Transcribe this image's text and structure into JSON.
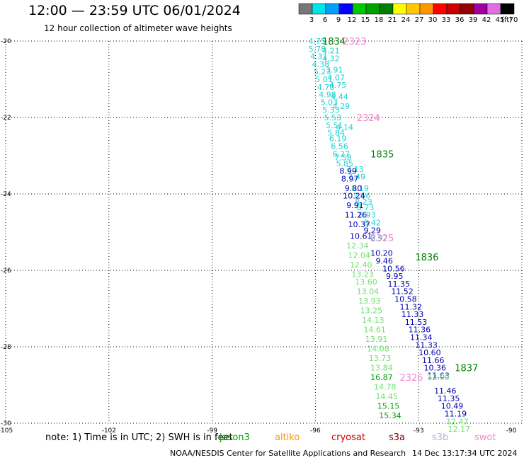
{
  "title": "12:00 — 23:59 UTC 06/01/2024",
  "subtitle": "12 hour collection of altimeter wave heights",
  "colorbar": {
    "unit_label": "(ft)",
    "ticks": [
      "3",
      "6",
      "9",
      "12",
      "15",
      "18",
      "21",
      "24",
      "27",
      "30",
      "33",
      "36",
      "39",
      "42",
      "45",
      "70"
    ],
    "colors": [
      "#777777",
      "#00e5e5",
      "#00a0ff",
      "#0000ff",
      "#00c800",
      "#00a000",
      "#008000",
      "#ffff00",
      "#ffc800",
      "#ff9600",
      "#ff0000",
      "#c80000",
      "#960000",
      "#a000a0",
      "#e070e0",
      "#000000"
    ]
  },
  "map": {
    "lat_labels": [
      "-20",
      "-22",
      "-24",
      "-26",
      "-28",
      "-30"
    ],
    "lon_labels": [
      "-105",
      "-102",
      "-99",
      "-96",
      "-93",
      "-90"
    ]
  },
  "colors": {
    "jason3": "#00a000",
    "altika": "#ff9600",
    "cryosat": "#c80000",
    "s3a": "#7a0000",
    "s3b": "#b0b0ee",
    "swot": "#ee88cc",
    "track_cyan": "#20d0d0",
    "track_blue": "#0000b0",
    "track_lightgreen": "#70e070",
    "track_green": "#00b000"
  },
  "tracks": [
    {
      "name": "cyan-track",
      "color": "#20d0d0",
      "points": [
        {
          "v": "4.75",
          "lon": -96.2,
          "lat": -20.0
        },
        {
          "v": "5.78",
          "lon": -96.2,
          "lat": -20.2
        },
        {
          "v": "4.31",
          "lon": -96.15,
          "lat": -20.4
        },
        {
          "v": "4.38",
          "lon": -96.1,
          "lat": -20.6
        },
        {
          "v": "5.23",
          "lon": -96.05,
          "lat": -20.8
        },
        {
          "v": "5.01",
          "lon": -96.0,
          "lat": -21.0
        },
        {
          "v": "4.70",
          "lon": -95.95,
          "lat": -21.2
        },
        {
          "v": "4.98",
          "lon": -95.9,
          "lat": -21.4
        },
        {
          "v": "5.03",
          "lon": -95.85,
          "lat": -21.6
        },
        {
          "v": "5.33",
          "lon": -95.8,
          "lat": -21.8
        },
        {
          "v": "5.53",
          "lon": -95.75,
          "lat": -22.0
        },
        {
          "v": "5.51",
          "lon": -95.7,
          "lat": -22.2
        },
        {
          "v": "5.84",
          "lon": -95.65,
          "lat": -22.4
        },
        {
          "v": "6.19",
          "lon": -95.6,
          "lat": -22.55
        },
        {
          "v": "6.56",
          "lon": -95.55,
          "lat": -22.75
        },
        {
          "v": "6.27",
          "lon": -95.5,
          "lat": -22.95
        },
        {
          "v": "7.58",
          "lon": -95.45,
          "lat": -23.05
        },
        {
          "v": "5.85",
          "lon": -95.4,
          "lat": -23.2
        }
      ]
    },
    {
      "name": "cyan-track-right",
      "color": "#20d0d0",
      "points": [
        {
          "v": "4.21",
          "lon": -95.8,
          "lat": -20.25
        },
        {
          "v": "4.32",
          "lon": -95.8,
          "lat": -20.45
        },
        {
          "v": "3.91",
          "lon": -95.7,
          "lat": -20.75
        },
        {
          "v": "4.07",
          "lon": -95.65,
          "lat": -20.95
        },
        {
          "v": "4.75",
          "lon": -95.6,
          "lat": -21.15
        },
        {
          "v": "4.44",
          "lon": -95.55,
          "lat": -21.45
        },
        {
          "v": "4.29",
          "lon": -95.5,
          "lat": -21.7
        },
        {
          "v": "4.14",
          "lon": -95.4,
          "lat": -22.25
        },
        {
          "v": "7.13",
          "lon": -95.1,
          "lat": -23.35
        },
        {
          "v": "7.49",
          "lon": -95.05,
          "lat": -23.55
        },
        {
          "v": "8.19",
          "lon": -94.95,
          "lat": -23.85
        },
        {
          "v": "7.56",
          "lon": -94.9,
          "lat": -24.05
        },
        {
          "v": "8.23",
          "lon": -94.85,
          "lat": -24.2
        },
        {
          "v": "8.73",
          "lon": -94.8,
          "lat": -24.35
        },
        {
          "v": "8.93",
          "lon": -94.75,
          "lat": -24.55
        },
        {
          "v": "8.42",
          "lon": -94.6,
          "lat": -24.75
        },
        {
          "v": "8.97",
          "lon": -94.4,
          "lat": -25.15
        }
      ]
    },
    {
      "name": "blue-track",
      "color": "#0000b0",
      "points": [
        {
          "v": "8.99",
          "lon": -95.3,
          "lat": -23.4
        },
        {
          "v": "8.97",
          "lon": -95.25,
          "lat": -23.6
        },
        {
          "v": "9.80",
          "lon": -95.15,
          "lat": -23.85
        },
        {
          "v": "10.24",
          "lon": -95.2,
          "lat": -24.05
        },
        {
          "v": "9.91",
          "lon": -95.1,
          "lat": -24.3
        },
        {
          "v": "11.26",
          "lon": -95.15,
          "lat": -24.55
        },
        {
          "v": "10.37",
          "lon": -95.05,
          "lat": -24.8
        },
        {
          "v": "9.29",
          "lon": -94.6,
          "lat": -24.95
        },
        {
          "v": "10.61",
          "lon": -95.0,
          "lat": -25.1
        },
        {
          "v": "10.20",
          "lon": -94.4,
          "lat": -25.55
        },
        {
          "v": "9.46",
          "lon": -94.25,
          "lat": -25.75
        },
        {
          "v": "10.56",
          "lon": -94.05,
          "lat": -25.95
        },
        {
          "v": "9.95",
          "lon": -93.95,
          "lat": -26.15
        },
        {
          "v": "11.35",
          "lon": -93.9,
          "lat": -26.35
        },
        {
          "v": "11.52",
          "lon": -93.8,
          "lat": -26.55
        },
        {
          "v": "10.58",
          "lon": -93.7,
          "lat": -26.75
        },
        {
          "v": "11.32",
          "lon": -93.55,
          "lat": -26.95
        },
        {
          "v": "11.33",
          "lon": -93.5,
          "lat": -27.15
        },
        {
          "v": "11.53",
          "lon": -93.4,
          "lat": -27.35
        },
        {
          "v": "11.36",
          "lon": -93.3,
          "lat": -27.55
        },
        {
          "v": "11.34",
          "lon": -93.25,
          "lat": -27.75
        },
        {
          "v": "11.33",
          "lon": -93.1,
          "lat": -27.95
        },
        {
          "v": "10.60",
          "lon": -93.0,
          "lat": -28.15
        },
        {
          "v": "11.66",
          "lon": -92.9,
          "lat": -28.35
        },
        {
          "v": "10.36",
          "lon": -92.85,
          "lat": -28.55
        },
        {
          "v": "11.63",
          "lon": -92.75,
          "lat": -28.75
        },
        {
          "v": "11.46",
          "lon": -92.55,
          "lat": -29.15
        },
        {
          "v": "11.35",
          "lon": -92.45,
          "lat": -29.35
        },
        {
          "v": "10.49",
          "lon": -92.35,
          "lat": -29.55
        },
        {
          "v": "11.19",
          "lon": -92.25,
          "lat": -29.75
        }
      ]
    },
    {
      "name": "lightgreen-track",
      "color": "#70e070",
      "points": [
        {
          "v": "12.34",
          "lon": -95.1,
          "lat": -25.35
        },
        {
          "v": "12.04",
          "lon": -95.05,
          "lat": -25.6
        },
        {
          "v": "12.40",
          "lon": -95.0,
          "lat": -25.85
        },
        {
          "v": "13.23",
          "lon": -94.95,
          "lat": -26.1
        },
        {
          "v": "13.60",
          "lon": -94.85,
          "lat": -26.3
        },
        {
          "v": "13.04",
          "lon": -94.8,
          "lat": -26.55
        },
        {
          "v": "13.93",
          "lon": -94.75,
          "lat": -26.8
        },
        {
          "v": "13.25",
          "lon": -94.7,
          "lat": -27.05
        },
        {
          "v": "14.13",
          "lon": -94.65,
          "lat": -27.3
        },
        {
          "v": "14.61",
          "lon": -94.6,
          "lat": -27.55
        },
        {
          "v": "13.91",
          "lon": -94.55,
          "lat": -27.8
        },
        {
          "v": "14.08",
          "lon": -94.5,
          "lat": -28.05
        },
        {
          "v": "13.73",
          "lon": -94.45,
          "lat": -28.3
        },
        {
          "v": "13.84",
          "lon": -94.4,
          "lat": -28.55
        },
        {
          "v": "14.78",
          "lon": -94.3,
          "lat": -29.05
        },
        {
          "v": "14.45",
          "lon": -94.25,
          "lat": -29.3
        },
        {
          "v": "12.09",
          "lon": -92.75,
          "lat": -28.8
        },
        {
          "v": "12.47",
          "lon": -92.2,
          "lat": -29.95
        },
        {
          "v": "12.17",
          "lon": -92.15,
          "lat": -30.15
        }
      ]
    },
    {
      "name": "green-track",
      "color": "#00a000",
      "points": [
        {
          "v": "16.87",
          "lon": -94.4,
          "lat": -28.8
        },
        {
          "v": "15.15",
          "lon": -94.2,
          "lat": -29.55
        },
        {
          "v": "15.34",
          "lon": -94.15,
          "lat": -29.8
        }
      ]
    }
  ],
  "pass_labels": [
    {
      "text": "1834",
      "color": "#008000",
      "lon": -95.8,
      "lat": -20.0
    },
    {
      "text": "2323",
      "color": "#ee88cc",
      "lon": -95.2,
      "lat": -20.0
    },
    {
      "text": "2324",
      "color": "#ee88cc",
      "lon": -94.8,
      "lat": -22.0
    },
    {
      "text": "1835",
      "color": "#008000",
      "lon": -94.4,
      "lat": -22.95
    },
    {
      "text": "2325",
      "color": "#ee88cc",
      "lon": -94.4,
      "lat": -25.15
    },
    {
      "text": "1836",
      "color": "#008000",
      "lon": -93.1,
      "lat": -25.65
    },
    {
      "text": "2326",
      "color": "#ee88cc",
      "lon": -93.55,
      "lat": -28.8
    },
    {
      "text": "1837",
      "color": "#008000",
      "lon": -91.95,
      "lat": -28.55
    }
  ],
  "legend": {
    "note": "note:  1) Time is in UTC; 2) SWH is in feet",
    "jason3": "jason3",
    "altika": "altiko",
    "cryosat": "cryosat",
    "s3a": "s3a",
    "s3b": "s3b",
    "swot": "swot"
  },
  "credit": "NOAA/NESDIS Center for Satellite Applications and Research",
  "timestamp": "14 Dec 13:17:34 UTC 2024"
}
